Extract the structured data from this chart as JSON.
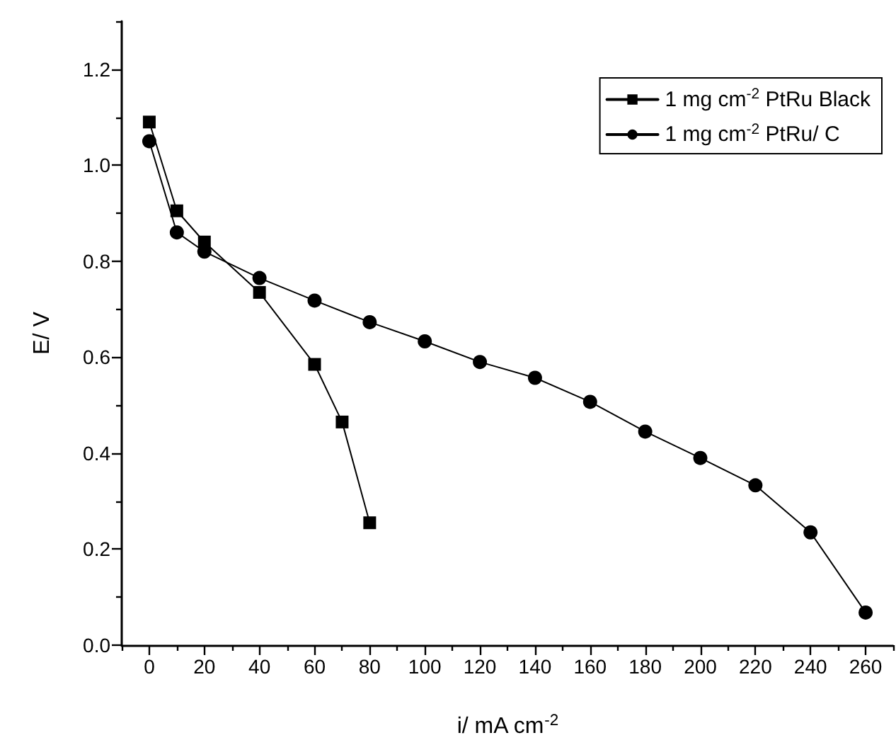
{
  "chart_data": {
    "type": "line",
    "xlabel": "i/ mA cm$^{-2}$",
    "ylabel": "E/ V",
    "legend": "top right",
    "grid": false,
    "line_style": "solid",
    "xlim": [
      -10,
      270
    ],
    "ylim": [
      0,
      1.3
    ],
    "xticks": [
      {
        "value": -10,
        "label": null
      },
      0,
      {
        "value": 10,
        "label": null
      },
      20,
      {
        "value": 30,
        "label": null
      },
      40,
      {
        "value": 50,
        "label": null
      },
      60,
      {
        "value": 70,
        "label": null
      },
      80,
      {
        "value": 90,
        "label": null
      },
      100,
      {
        "value": 110,
        "label": null
      },
      120,
      {
        "value": 130,
        "label": null
      },
      140,
      {
        "value": 150,
        "label": null
      },
      160,
      {
        "value": 170,
        "label": null
      },
      180,
      {
        "value": 190,
        "label": null
      },
      200,
      {
        "value": 210,
        "label": null
      },
      220,
      {
        "value": 230,
        "label": null
      },
      240,
      {
        "value": 250,
        "label": null
      },
      260,
      {
        "value": 270,
        "label": null
      }
    ],
    "yticks": [
      {
        "value": 0,
        "label": "0.0"
      },
      {
        "value": 0.1,
        "label": null
      },
      {
        "value": 0.2,
        "label": "0.2"
      },
      {
        "value": 0.3,
        "label": null
      },
      {
        "value": 0.4,
        "label": "0.4"
      },
      {
        "value": 0.5,
        "label": null
      },
      {
        "value": 0.6,
        "label": "0.6"
      },
      {
        "value": 0.7,
        "label": null
      },
      {
        "value": 0.8,
        "label": "0.8"
      },
      {
        "value": 0.9,
        "label": null
      },
      {
        "value": 1.0,
        "label": "1.0"
      },
      {
        "value": 1.1,
        "label": null
      },
      {
        "value": 1.2,
        "label": "1.2"
      },
      {
        "value": 1.3,
        "label": null
      }
    ],
    "series": [
      {
        "name": "1 mg cm$^{-2}$ PtRu Black",
        "color": "#000000",
        "marker": "square",
        "x": [
          0,
          10,
          20,
          40,
          60,
          70,
          80
        ],
        "values": [
          1.09,
          0.905,
          0.84,
          0.735,
          0.585,
          0.465,
          0.255
        ]
      },
      {
        "name": "1 mg cm$^{-2}$ PtRu/ C",
        "color": "#000000",
        "marker": "circle",
        "x": [
          0,
          10,
          20,
          40,
          60,
          80,
          100,
          120,
          140,
          160,
          180,
          200,
          220,
          240,
          260
        ],
        "values": [
          1.05,
          0.86,
          0.82,
          0.765,
          0.718,
          0.673,
          0.633,
          0.59,
          0.557,
          0.507,
          0.445,
          0.39,
          0.333,
          0.235,
          0.068
        ]
      }
    ]
  }
}
